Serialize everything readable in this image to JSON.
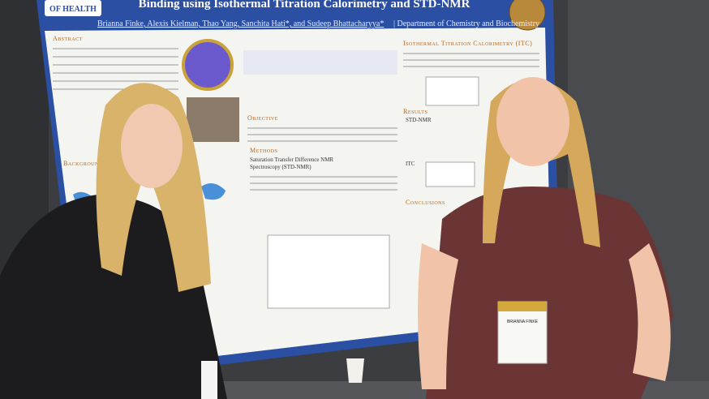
{
  "poster": {
    "logo_text": "OF HEALTH",
    "title": "Binding using Isothermal Titration Calorimetry and STD-NMR",
    "authors": "Brianna Finke, Alexis Kielman, Thao Yang, Sanchita Hati*, and Sudeep Bhattacharyya*",
    "department": "| Department of Chemistry and Biochemistry",
    "sections": {
      "abstract": "Abstract",
      "background": "Background",
      "objective": "Objective",
      "methods": "Methods",
      "std_title_1": "Saturation Transfer Difference NMR",
      "std_title_2": "Spectroscopy (STD-NMR)",
      "itc_title": "Isothermal Titration Calorimetry (ITC)",
      "results": "Results",
      "results_std": "STD-NMR",
      "results_itc": "ITC",
      "conclusions": "Conclusions"
    }
  },
  "badge": {
    "name": "BRIANNA FINKE"
  }
}
